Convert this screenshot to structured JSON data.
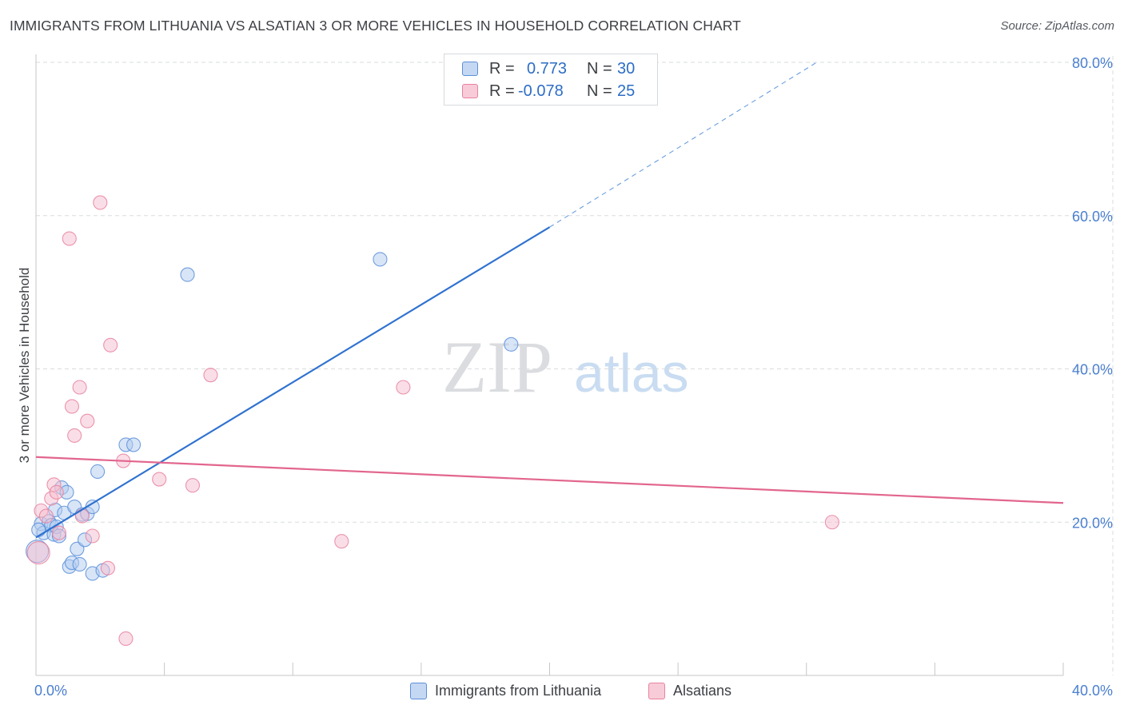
{
  "header": {
    "title": "IMMIGRANTS FROM LITHUANIA VS ALSATIAN 3 OR MORE VEHICLES IN HOUSEHOLD CORRELATION CHART",
    "source": "Source: ZipAtlas.com"
  },
  "watermark": {
    "zip": "ZIP",
    "atlas": "atlas"
  },
  "legend_top": {
    "rows": [
      {
        "r_label": "R =",
        "r_value": "0.773",
        "n_label": "N =",
        "n_value": "30",
        "color": "#5b8fd9"
      },
      {
        "r_label": "R =",
        "r_value": "-0.078",
        "n_label": "N =",
        "n_value": "25",
        "color": "#e8829f"
      }
    ]
  },
  "legend_bottom": {
    "items": [
      {
        "label": "Immigrants from Lithuania",
        "color": "#5b8fd9"
      },
      {
        "label": "Alsatians",
        "color": "#e8829f"
      }
    ]
  },
  "chart_data": {
    "type": "scatter",
    "title": "IMMIGRANTS FROM LITHUANIA VS ALSATIAN 3 OR MORE VEHICLES IN HOUSEHOLD CORRELATION CHART",
    "xlabel": "",
    "ylabel": "3 or more Vehicles in Household",
    "xlim": [
      0,
      40
    ],
    "ylim": [
      0,
      80
    ],
    "x_tick_labels": [
      "0.0%",
      "40.0%"
    ],
    "y_ticks": [
      20,
      40,
      60,
      80
    ],
    "y_tick_labels": [
      "20.0%",
      "40.0%",
      "60.0%",
      "80.0%"
    ],
    "grid": true,
    "legend_position": "bottom",
    "series": [
      {
        "name": "Immigrants from Lithuania",
        "color": "#5b8fd9",
        "points": [
          {
            "x": 0.2,
            "y": 19.8
          },
          {
            "x": 0.3,
            "y": 18.6
          },
          {
            "x": 0.5,
            "y": 20.1
          },
          {
            "x": 0.6,
            "y": 19.6
          },
          {
            "x": 0.7,
            "y": 18.4
          },
          {
            "x": 0.75,
            "y": 21.6
          },
          {
            "x": 0.8,
            "y": 19.4
          },
          {
            "x": 0.9,
            "y": 18.2
          },
          {
            "x": 1.0,
            "y": 24.5
          },
          {
            "x": 1.1,
            "y": 21.2
          },
          {
            "x": 1.2,
            "y": 23.9
          },
          {
            "x": 1.3,
            "y": 14.2
          },
          {
            "x": 1.4,
            "y": 14.7
          },
          {
            "x": 1.5,
            "y": 22.0
          },
          {
            "x": 1.6,
            "y": 16.5
          },
          {
            "x": 1.7,
            "y": 14.5
          },
          {
            "x": 1.8,
            "y": 21.0
          },
          {
            "x": 1.9,
            "y": 17.7
          },
          {
            "x": 2.0,
            "y": 21.1
          },
          {
            "x": 2.2,
            "y": 22.0
          },
          {
            "x": 2.2,
            "y": 13.3
          },
          {
            "x": 2.4,
            "y": 26.6
          },
          {
            "x": 2.6,
            "y": 13.7
          },
          {
            "x": 3.5,
            "y": 30.1
          },
          {
            "x": 3.8,
            "y": 30.1
          },
          {
            "x": 5.9,
            "y": 52.3
          },
          {
            "x": 13.4,
            "y": 54.3
          },
          {
            "x": 18.5,
            "y": 43.2
          },
          {
            "x": 0.05,
            "y": 16.2,
            "r": 14
          },
          {
            "x": 0.1,
            "y": 19.0
          }
        ],
        "trend": {
          "x0": 0,
          "y0": 18,
          "x1": 20,
          "y1": 58.5,
          "dash_x1": 30.4,
          "dash_y1": 80
        }
      },
      {
        "name": "Alsatians",
        "color": "#e8829f",
        "points": [
          {
            "x": 0.1,
            "y": 16.0,
            "r": 14
          },
          {
            "x": 0.2,
            "y": 21.5
          },
          {
            "x": 0.4,
            "y": 20.8
          },
          {
            "x": 0.6,
            "y": 23.1
          },
          {
            "x": 0.7,
            "y": 24.9
          },
          {
            "x": 0.8,
            "y": 23.9
          },
          {
            "x": 0.9,
            "y": 18.6
          },
          {
            "x": 1.3,
            "y": 57.0
          },
          {
            "x": 1.4,
            "y": 35.1
          },
          {
            "x": 1.5,
            "y": 31.3
          },
          {
            "x": 1.7,
            "y": 37.6
          },
          {
            "x": 1.8,
            "y": 20.8
          },
          {
            "x": 2.0,
            "y": 33.2
          },
          {
            "x": 2.2,
            "y": 18.2
          },
          {
            "x": 2.5,
            "y": 61.7
          },
          {
            "x": 2.8,
            "y": 14.0
          },
          {
            "x": 2.9,
            "y": 43.1
          },
          {
            "x": 3.4,
            "y": 28.0
          },
          {
            "x": 3.5,
            "y": 4.8
          },
          {
            "x": 4.8,
            "y": 25.6
          },
          {
            "x": 6.1,
            "y": 24.8
          },
          {
            "x": 6.8,
            "y": 39.2
          },
          {
            "x": 11.9,
            "y": 17.5
          },
          {
            "x": 14.3,
            "y": 37.6
          },
          {
            "x": 31.0,
            "y": 20.0
          }
        ],
        "trend": {
          "x0": 0,
          "y0": 28.5,
          "x1": 40,
          "y1": 22.5
        }
      }
    ]
  }
}
